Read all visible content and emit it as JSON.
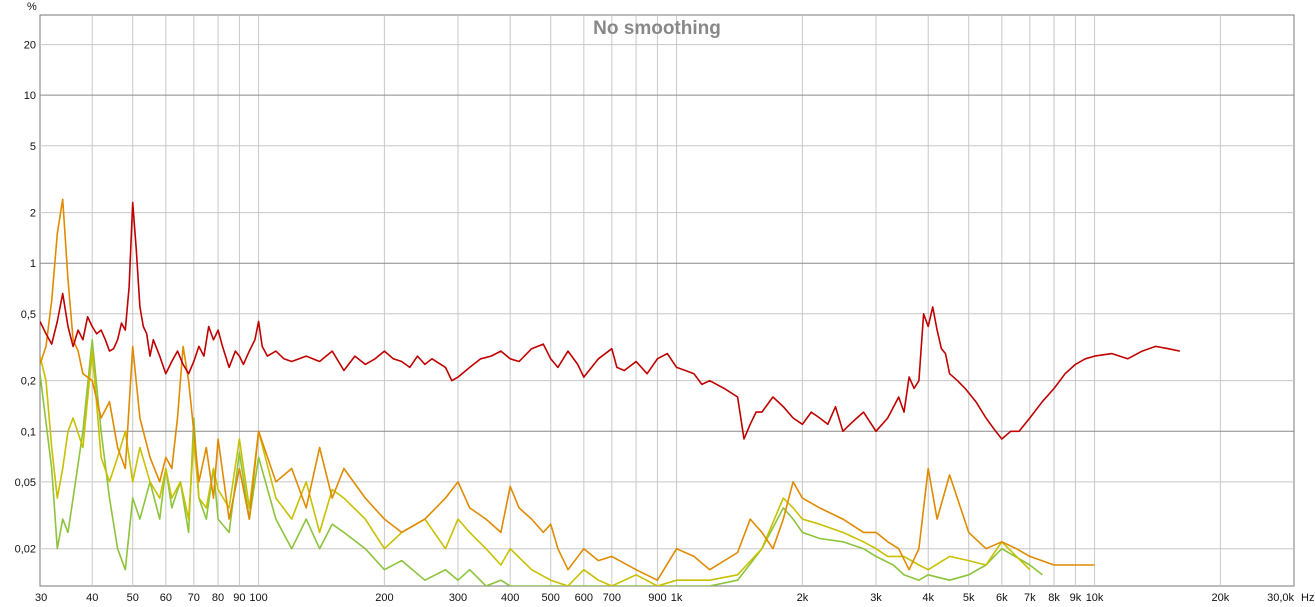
{
  "chart_data": {
    "type": "line",
    "title": "No smoothing",
    "x_scale": "log",
    "y_scale": "log",
    "xlim": [
      30,
      30000
    ],
    "ylim": [
      0.012,
      30
    ],
    "x_unit": "Hz",
    "y_unit": "%",
    "grid": true,
    "x_ticks": [
      {
        "value": 30,
        "label": "30"
      },
      {
        "value": 40,
        "label": "40"
      },
      {
        "value": 50,
        "label": "50"
      },
      {
        "value": 60,
        "label": "60"
      },
      {
        "value": 70,
        "label": "70"
      },
      {
        "value": 80,
        "label": "80"
      },
      {
        "value": 90,
        "label": "90"
      },
      {
        "value": 100,
        "label": "100"
      },
      {
        "value": 200,
        "label": "200"
      },
      {
        "value": 300,
        "label": "300"
      },
      {
        "value": 400,
        "label": "400"
      },
      {
        "value": 500,
        "label": "500"
      },
      {
        "value": 600,
        "label": "600"
      },
      {
        "value": 700,
        "label": "700"
      },
      {
        "value": 900,
        "label": "900"
      },
      {
        "value": 1000,
        "label": "1k"
      },
      {
        "value": 2000,
        "label": "2k"
      },
      {
        "value": 3000,
        "label": "3k"
      },
      {
        "value": 4000,
        "label": "4k"
      },
      {
        "value": 5000,
        "label": "5k"
      },
      {
        "value": 6000,
        "label": "6k"
      },
      {
        "value": 7000,
        "label": "7k"
      },
      {
        "value": 8000,
        "label": "8k"
      },
      {
        "value": 9000,
        "label": "9k"
      },
      {
        "value": 10000,
        "label": "10k"
      },
      {
        "value": 20000,
        "label": "20k"
      },
      {
        "value": 30000,
        "label": "30,0k"
      }
    ],
    "x_minor_gridlines": [
      800,
      8000
    ],
    "y_ticks": [
      {
        "value": 20,
        "label": "20"
      },
      {
        "value": 10,
        "label": "10"
      },
      {
        "value": 5,
        "label": "5"
      },
      {
        "value": 2,
        "label": "2"
      },
      {
        "value": 1,
        "label": "1"
      },
      {
        "value": 0.5,
        "label": "0,5"
      },
      {
        "value": 0.2,
        "label": "0,2"
      },
      {
        "value": 0.1,
        "label": "0,1"
      },
      {
        "value": 0.05,
        "label": "0,05"
      },
      {
        "value": 0.02,
        "label": "0,02"
      }
    ],
    "y_major_lines": [
      10,
      1,
      0.1
    ],
    "series": [
      {
        "color": "#c00000",
        "x": [
          30,
          31,
          32,
          33,
          34,
          35,
          36,
          37,
          38,
          39,
          40,
          41,
          42,
          43,
          44,
          45,
          46,
          47,
          48,
          49,
          50,
          51,
          52,
          53,
          54,
          55,
          56,
          58,
          60,
          62,
          64,
          66,
          68,
          70,
          72,
          74,
          76,
          78,
          80,
          82,
          85,
          88,
          90,
          92,
          95,
          98,
          100,
          102,
          105,
          110,
          115,
          120,
          130,
          140,
          150,
          160,
          170,
          180,
          190,
          200,
          210,
          220,
          230,
          240,
          250,
          260,
          280,
          290,
          300,
          320,
          340,
          360,
          380,
          400,
          420,
          450,
          480,
          500,
          520,
          550,
          580,
          600,
          650,
          700,
          720,
          750,
          800,
          850,
          900,
          950,
          1000,
          1050,
          1100,
          1150,
          1200,
          1300,
          1400,
          1450,
          1500,
          1550,
          1600,
          1700,
          1800,
          1900,
          2000,
          2100,
          2200,
          2300,
          2400,
          2500,
          2600,
          2700,
          2800,
          3000,
          3200,
          3400,
          3500,
          3600,
          3700,
          3800,
          3900,
          4000,
          4100,
          4200,
          4300,
          4400,
          4500,
          4700,
          4900,
          5200,
          5500,
          5800,
          6000,
          6300,
          6600,
          7000,
          7500,
          8000,
          8500,
          9000,
          9500,
          10000,
          11000,
          12000,
          13000,
          14000,
          15000,
          16000
        ],
        "values": [
          0.45,
          0.38,
          0.33,
          0.45,
          0.66,
          0.42,
          0.32,
          0.4,
          0.35,
          0.48,
          0.42,
          0.38,
          0.4,
          0.35,
          0.3,
          0.31,
          0.35,
          0.44,
          0.4,
          0.72,
          2.3,
          1.2,
          0.55,
          0.42,
          0.38,
          0.28,
          0.35,
          0.28,
          0.22,
          0.26,
          0.3,
          0.25,
          0.22,
          0.26,
          0.32,
          0.28,
          0.42,
          0.35,
          0.4,
          0.32,
          0.24,
          0.3,
          0.28,
          0.25,
          0.3,
          0.35,
          0.45,
          0.32,
          0.28,
          0.3,
          0.27,
          0.26,
          0.28,
          0.26,
          0.3,
          0.23,
          0.28,
          0.25,
          0.27,
          0.3,
          0.27,
          0.26,
          0.24,
          0.28,
          0.25,
          0.27,
          0.24,
          0.2,
          0.21,
          0.24,
          0.27,
          0.28,
          0.3,
          0.27,
          0.26,
          0.31,
          0.33,
          0.27,
          0.24,
          0.3,
          0.25,
          0.21,
          0.27,
          0.31,
          0.24,
          0.23,
          0.26,
          0.22,
          0.27,
          0.29,
          0.24,
          0.23,
          0.22,
          0.19,
          0.2,
          0.18,
          0.16,
          0.09,
          0.11,
          0.13,
          0.13,
          0.16,
          0.14,
          0.12,
          0.11,
          0.13,
          0.12,
          0.11,
          0.14,
          0.1,
          0.11,
          0.12,
          0.13,
          0.1,
          0.12,
          0.16,
          0.13,
          0.21,
          0.18,
          0.2,
          0.5,
          0.42,
          0.55,
          0.4,
          0.31,
          0.29,
          0.22,
          0.2,
          0.18,
          0.15,
          0.12,
          0.1,
          0.09,
          0.1,
          0.1,
          0.12,
          0.15,
          0.18,
          0.22,
          0.25,
          0.27,
          0.28,
          0.29,
          0.27,
          0.3,
          0.32,
          0.31,
          0.3
        ]
      },
      {
        "color": "#e08a00",
        "x": [
          30,
          31,
          32,
          33,
          34,
          35,
          36,
          37,
          38,
          40,
          42,
          44,
          46,
          48,
          50,
          52,
          55,
          58,
          60,
          62,
          64,
          66,
          68,
          70,
          72,
          75,
          78,
          80,
          85,
          90,
          95,
          100,
          110,
          120,
          130,
          140,
          150,
          160,
          180,
          200,
          220,
          250,
          280,
          300,
          320,
          350,
          380,
          400,
          420,
          450,
          480,
          500,
          520,
          550,
          600,
          650,
          700,
          800,
          900,
          1000,
          1100,
          1200,
          1400,
          1500,
          1600,
          1700,
          1800,
          1900,
          2000,
          2200,
          2500,
          2800,
          3000,
          3200,
          3400,
          3600,
          3800,
          4000,
          4200,
          4500,
          5000,
          5500,
          6000,
          6500,
          7000,
          8000,
          9000,
          10000
        ],
        "values": [
          0.25,
          0.32,
          0.6,
          1.5,
          2.4,
          0.8,
          0.35,
          0.3,
          0.22,
          0.2,
          0.12,
          0.15,
          0.08,
          0.06,
          0.32,
          0.12,
          0.07,
          0.05,
          0.07,
          0.06,
          0.12,
          0.32,
          0.2,
          0.1,
          0.05,
          0.08,
          0.04,
          0.09,
          0.03,
          0.06,
          0.03,
          0.1,
          0.05,
          0.06,
          0.035,
          0.08,
          0.04,
          0.06,
          0.04,
          0.03,
          0.025,
          0.03,
          0.04,
          0.05,
          0.035,
          0.03,
          0.025,
          0.047,
          0.035,
          0.03,
          0.025,
          0.028,
          0.02,
          0.015,
          0.02,
          0.017,
          0.018,
          0.015,
          0.013,
          0.02,
          0.018,
          0.015,
          0.019,
          0.03,
          0.025,
          0.02,
          0.03,
          0.05,
          0.04,
          0.035,
          0.03,
          0.025,
          0.025,
          0.022,
          0.02,
          0.015,
          0.02,
          0.06,
          0.03,
          0.055,
          0.025,
          0.02,
          0.022,
          0.02,
          0.018,
          0.016,
          0.016,
          0.016
        ]
      },
      {
        "color": "#c8c000",
        "x": [
          30,
          31,
          32,
          33,
          34,
          35,
          36,
          38,
          40,
          42,
          44,
          46,
          48,
          50,
          52,
          55,
          58,
          60,
          62,
          65,
          68,
          70,
          72,
          75,
          78,
          80,
          85,
          90,
          95,
          100,
          110,
          120,
          130,
          140,
          150,
          160,
          180,
          200,
          220,
          250,
          280,
          300,
          320,
          350,
          380,
          400,
          450,
          500,
          550,
          600,
          650,
          700,
          800,
          900,
          1000,
          1200,
          1400,
          1600,
          1800,
          1900,
          2000,
          2200,
          2500,
          2800,
          3000,
          3200,
          3500,
          3800,
          4000,
          4500,
          5000,
          5500,
          6000,
          7000
        ],
        "values": [
          0.28,
          0.2,
          0.08,
          0.04,
          0.06,
          0.1,
          0.12,
          0.08,
          0.3,
          0.07,
          0.05,
          0.07,
          0.1,
          0.05,
          0.08,
          0.05,
          0.04,
          0.06,
          0.04,
          0.05,
          0.03,
          0.09,
          0.04,
          0.035,
          0.06,
          0.045,
          0.035,
          0.09,
          0.035,
          0.1,
          0.04,
          0.03,
          0.05,
          0.025,
          0.045,
          0.04,
          0.03,
          0.02,
          0.025,
          0.03,
          0.02,
          0.03,
          0.025,
          0.02,
          0.016,
          0.02,
          0.015,
          0.013,
          0.012,
          0.015,
          0.013,
          0.012,
          0.014,
          0.012,
          0.013,
          0.013,
          0.014,
          0.02,
          0.04,
          0.035,
          0.03,
          0.028,
          0.025,
          0.022,
          0.02,
          0.018,
          0.018,
          0.016,
          0.015,
          0.018,
          0.017,
          0.016,
          0.022,
          0.015
        ]
      },
      {
        "color": "#8cc43c",
        "x": [
          30,
          32,
          33,
          34,
          35,
          36,
          38,
          40,
          42,
          44,
          46,
          48,
          50,
          52,
          55,
          58,
          60,
          62,
          65,
          68,
          70,
          72,
          75,
          78,
          80,
          85,
          90,
          95,
          100,
          110,
          120,
          130,
          140,
          150,
          160,
          180,
          200,
          220,
          250,
          280,
          300,
          320,
          350,
          380,
          400,
          450,
          500,
          550,
          600,
          700,
          800,
          900,
          1000,
          1200,
          1400,
          1600,
          1800,
          1900,
          2000,
          2200,
          2500,
          2800,
          3000,
          3300,
          3500,
          3800,
          4000,
          4500,
          5000,
          5500,
          6000,
          7000,
          7500
        ],
        "values": [
          0.22,
          0.06,
          0.02,
          0.03,
          0.025,
          0.04,
          0.1,
          0.35,
          0.1,
          0.04,
          0.02,
          0.015,
          0.04,
          0.03,
          0.05,
          0.03,
          0.06,
          0.035,
          0.05,
          0.025,
          0.12,
          0.04,
          0.03,
          0.06,
          0.03,
          0.025,
          0.075,
          0.03,
          0.07,
          0.03,
          0.02,
          0.03,
          0.02,
          0.028,
          0.025,
          0.02,
          0.015,
          0.017,
          0.013,
          0.015,
          0.013,
          0.015,
          0.012,
          0.013,
          0.012,
          0.012,
          0.012,
          0.012,
          0.012,
          0.012,
          0.012,
          0.012,
          0.012,
          0.012,
          0.013,
          0.02,
          0.035,
          0.03,
          0.025,
          0.023,
          0.022,
          0.02,
          0.018,
          0.016,
          0.014,
          0.013,
          0.014,
          0.013,
          0.014,
          0.016,
          0.02,
          0.016,
          0.014
        ]
      }
    ]
  }
}
